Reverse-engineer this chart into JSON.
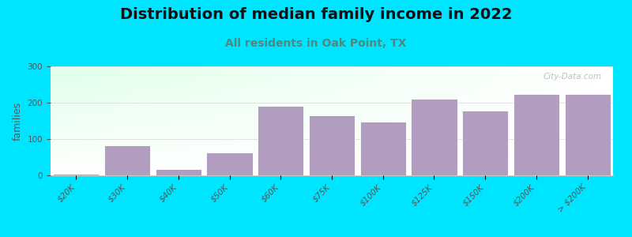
{
  "title": "Distribution of median family income in 2022",
  "subtitle": "All residents in Oak Point, TX",
  "ylabel": "families",
  "categories": [
    "$20K",
    "$30K",
    "$40K",
    "$50K",
    "$60K",
    "$75K",
    "$100K",
    "$125K",
    "$150K",
    "$200K",
    "> $200K"
  ],
  "values": [
    5,
    82,
    18,
    62,
    192,
    165,
    148,
    210,
    178,
    225,
    225
  ],
  "bar_color": "#b09dc0",
  "background_outer": "#00e5ff",
  "title_fontsize": 14,
  "title_color": "#111111",
  "subtitle_fontsize": 10,
  "subtitle_color": "#4a8a80",
  "ylabel_fontsize": 9,
  "tick_fontsize": 7.5,
  "ylim": [
    0,
    300
  ],
  "yticks": [
    0,
    100,
    200,
    300
  ],
  "watermark": "City-Data.com",
  "watermark_color": "#aaaaaa"
}
